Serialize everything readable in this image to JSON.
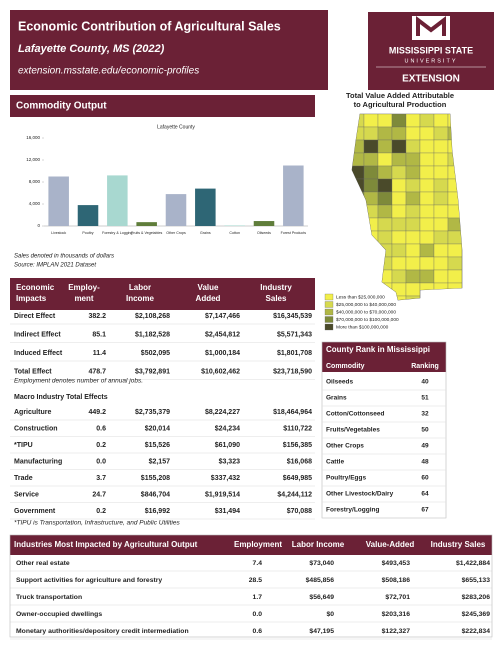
{
  "header": {
    "title": "Economic Contribution of Agricultural Sales",
    "county": "Lafayette County, MS (2022)",
    "url": "extension.msstate.edu/economic-profiles"
  },
  "logo": {
    "line1": "MISSISSIPPI STATE",
    "line2": "UNIVERSITY",
    "line3": "EXTENSION"
  },
  "commodity_output": {
    "heading": "Commodity Output",
    "chart": {
      "type": "bar",
      "title": "Lafayette County",
      "categories": [
        "Livestock",
        "Poultry",
        "Forestry & Logging",
        "Fruits & Vegetables",
        "Other Crops",
        "Grains",
        "Cotton",
        "Oilseeds",
        "Forest Products"
      ],
      "values": [
        9000,
        3800,
        9200,
        700,
        5800,
        6800,
        100,
        900,
        11000
      ],
      "colors": [
        "#a9b3c9",
        "#2e6675",
        "#a8d8d0",
        "#5f7d3a",
        "#a9b3c9",
        "#2e6675",
        "#a8d8d0",
        "#5f7d3a",
        "#a9b3c9"
      ],
      "ylim": [
        0,
        16000
      ],
      "yticks": [
        0,
        {
          "value": 4000,
          "label": "4,000"
        },
        {
          "value": 8000,
          "label": "8,000"
        },
        {
          "value": 12000,
          "label": "12,000"
        },
        {
          "value": 16000,
          "label": "16,000"
        }
      ]
    },
    "notes": [
      "Sales denoted in thousands of dollars",
      "Source: IMPLAN 2021 Dataset"
    ]
  },
  "economic_impacts": {
    "columns": [
      "Economic Impacts",
      "Employ-ment",
      "Labor Income",
      "Value Added",
      "Industry Sales"
    ],
    "rows": [
      [
        "Direct Effect",
        "382.2",
        "$2,108,268",
        "$7,147,466",
        "$16,345,539"
      ],
      [
        "Indirect Effect",
        "85.1",
        "$1,182,528",
        "$2,454,812",
        "$5,571,343"
      ],
      [
        "Induced Effect",
        "11.4",
        "$502,095",
        "$1,000,184",
        "$1,801,708"
      ],
      [
        "Total Effect",
        "478.7",
        "$3,792,891",
        "$10,602,462",
        "$23,718,590"
      ]
    ],
    "note": "Employment denotes number of annual jobs."
  },
  "macro": {
    "title": "Macro Industry Total Effects",
    "rows": [
      [
        "Agriculture",
        "449.2",
        "$2,735,379",
        "$8,224,227",
        "$18,464,964"
      ],
      [
        "Construction",
        "0.6",
        "$20,014",
        "$24,234",
        "$110,722"
      ],
      [
        "*TIPU",
        "0.2",
        "$15,526",
        "$61,090",
        "$156,385"
      ],
      [
        "Manufacturing",
        "0.0",
        "$2,157",
        "$3,323",
        "$16,068"
      ],
      [
        "Trade",
        "3.7",
        "$155,208",
        "$337,432",
        "$649,985"
      ],
      [
        "Service",
        "24.7",
        "$846,704",
        "$1,919,514",
        "$4,244,112"
      ],
      [
        "Government",
        "0.2",
        "$16,992",
        "$31,494",
        "$70,088"
      ]
    ],
    "note": "*TIPU is Transportation, Infrastructure, and Public Utilities"
  },
  "map": {
    "title": [
      "Total Value Added Attributable",
      "to Agricultural Production"
    ],
    "legend": [
      "Less than $25,000,000",
      "$25,000,000 to $40,000,000",
      "$40,000,000 to $70,000,000",
      "$70,000,000 to $100,000,000",
      "More than $100,000,000"
    ]
  },
  "county_rank": {
    "title": "County Rank in Mississippi",
    "columns": [
      "Commodity",
      "Ranking"
    ],
    "rows": [
      [
        "Oilseeds",
        "40"
      ],
      [
        "Grains",
        "51"
      ],
      [
        "Cotton/Cottonseed",
        "32"
      ],
      [
        "Fruits/Vegetables",
        "50"
      ],
      [
        "Other Crops",
        "49"
      ],
      [
        "Cattle",
        "48"
      ],
      [
        "Poultry/Eggs",
        "60"
      ],
      [
        "Other Livestock/Dairy",
        "64"
      ],
      [
        "Forestry/Logging",
        "67"
      ]
    ]
  },
  "industries": {
    "columns": [
      "Industries Most Impacted by Agricultural Output",
      "Employment",
      "Labor Income",
      "Value-Added",
      "Industry Sales"
    ],
    "rows": [
      [
        "Other real estate",
        "7.4",
        "$73,040",
        "$493,453",
        "$1,422,884"
      ],
      [
        "Support activities for agriculture and forestry",
        "28.5",
        "$485,856",
        "$508,186",
        "$655,133"
      ],
      [
        "Truck transportation",
        "1.7",
        "$56,649",
        "$72,701",
        "$283,206"
      ],
      [
        "Owner-occupied dwellings",
        "0.0",
        "$0",
        "$203,316",
        "$245,369"
      ],
      [
        "Monetary authorities/depository credit intermediation",
        "0.6",
        "$47,195",
        "$122,327",
        "$222,834"
      ]
    ]
  }
}
